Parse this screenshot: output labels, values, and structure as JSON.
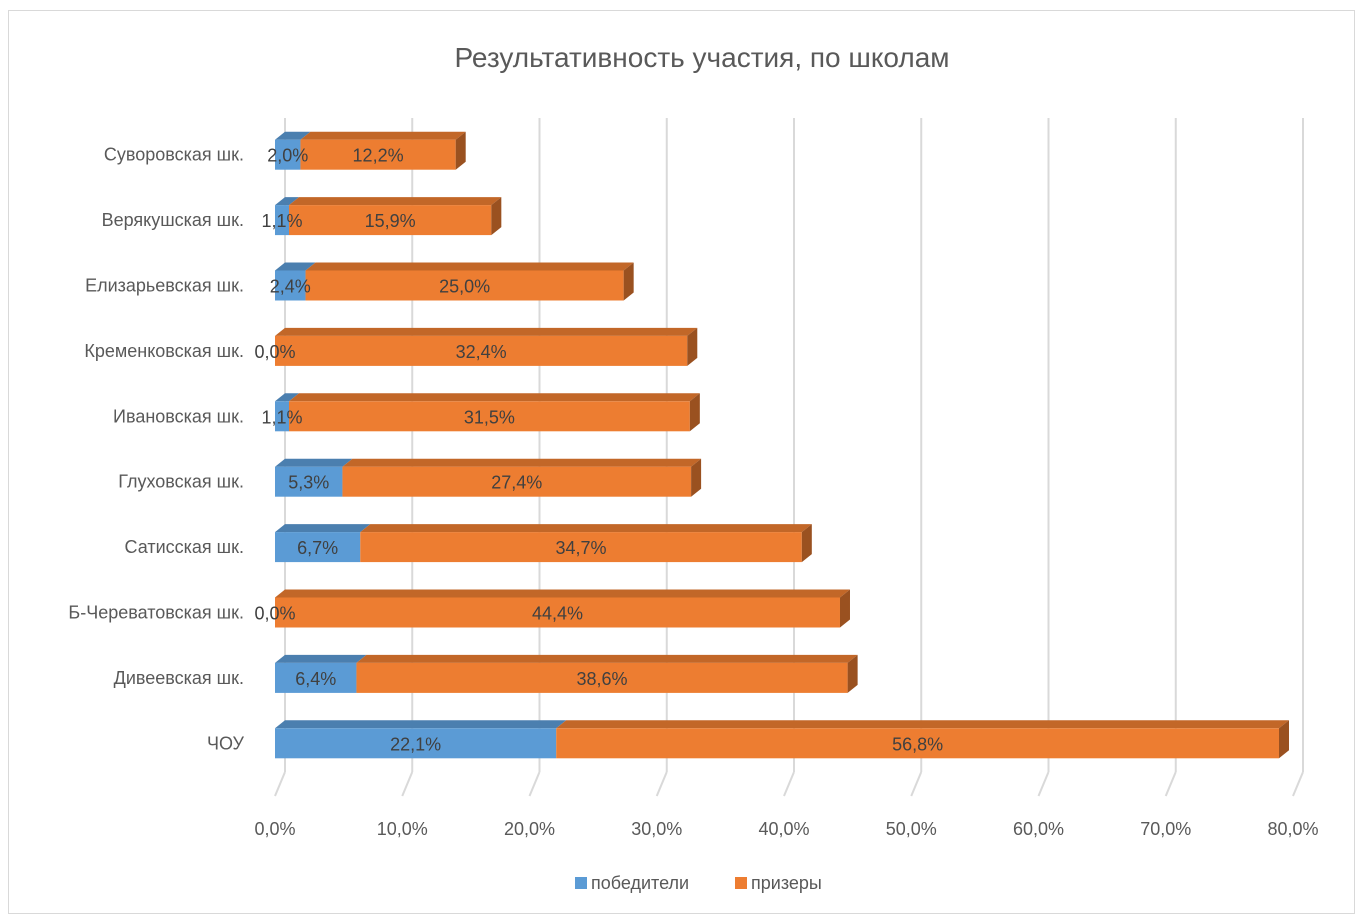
{
  "chart_data": {
    "type": "bar",
    "orientation": "horizontal",
    "stacked": true,
    "title": "Результативность участия, по школам",
    "categories": [
      "ЧОУ",
      "Дивеевская шк.",
      "Б-Череватовская шк.",
      "Сатисская шк.",
      "Глуховская шк.",
      "Ивановская шк.",
      "Кременковская шк.",
      "Елизарьевская шк.",
      "Верякушская шк.",
      "Суворовская шк."
    ],
    "series": [
      {
        "name": "победители",
        "color": "#5b9bd5",
        "values": [
          22.1,
          6.4,
          0.0,
          6.7,
          5.3,
          1.1,
          0.0,
          2.4,
          1.1,
          2.0
        ],
        "labels": [
          "22,1%",
          "6,4%",
          "0,0%",
          "6,7%",
          "5,3%",
          "1,1%",
          "0,0%",
          "2,4%",
          "1,1%",
          "2,0%"
        ]
      },
      {
        "name": "призеры",
        "color": "#ed7d31",
        "values": [
          56.8,
          38.6,
          44.4,
          34.7,
          27.4,
          31.5,
          32.4,
          25.0,
          15.9,
          12.2
        ],
        "labels": [
          "56,8%",
          "38,6%",
          "44,4%",
          "34,7%",
          "27,4%",
          "31,5%",
          "32,4%",
          "25,0%",
          "15,9%",
          "12,2%"
        ]
      }
    ],
    "xlim": [
      0,
      80
    ],
    "xticks": [
      "0,0%",
      "10,0%",
      "20,0%",
      "30,0%",
      "40,0%",
      "50,0%",
      "60,0%",
      "70,0%",
      "80,0%"
    ],
    "grid": true,
    "legend": "bottom",
    "style": "3d"
  }
}
